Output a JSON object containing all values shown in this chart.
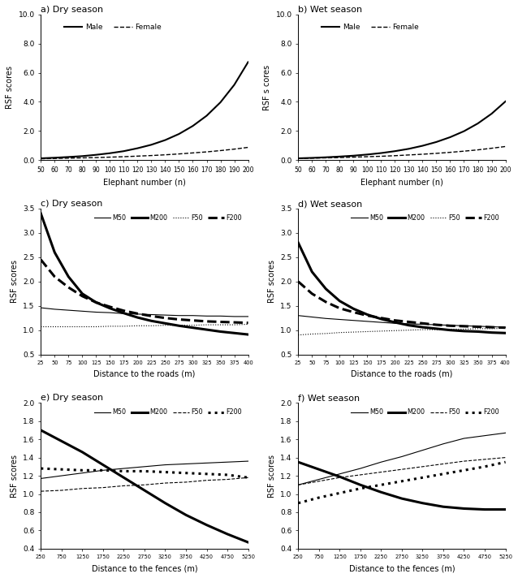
{
  "panels": [
    {
      "title": "a) Dry season",
      "type": "elephant_density",
      "season": "dry"
    },
    {
      "title": "b) Wet season",
      "type": "elephant_density",
      "season": "wet"
    },
    {
      "title": "c) Dry season",
      "type": "roads",
      "season": "dry"
    },
    {
      "title": "d) Wet season",
      "type": "roads",
      "season": "wet"
    },
    {
      "title": "e) Dry season",
      "type": "fences",
      "season": "dry"
    },
    {
      "title": "f) Wet season",
      "type": "fences",
      "season": "wet"
    }
  ],
  "elephant_density": {
    "x": [
      50,
      60,
      70,
      80,
      90,
      100,
      110,
      120,
      130,
      140,
      150,
      160,
      170,
      180,
      190,
      200
    ],
    "dry_male": [
      0.13,
      0.17,
      0.22,
      0.28,
      0.37,
      0.48,
      0.62,
      0.82,
      1.06,
      1.38,
      1.8,
      2.35,
      3.05,
      3.97,
      5.17,
      6.73
    ],
    "dry_female": [
      0.1,
      0.12,
      0.14,
      0.16,
      0.18,
      0.21,
      0.24,
      0.28,
      0.32,
      0.37,
      0.43,
      0.5,
      0.57,
      0.66,
      0.76,
      0.88
    ],
    "wet_male": [
      0.13,
      0.16,
      0.2,
      0.25,
      0.31,
      0.39,
      0.49,
      0.62,
      0.78,
      0.99,
      1.25,
      1.58,
      1.99,
      2.52,
      3.19,
      4.03
    ],
    "wet_female": [
      0.12,
      0.14,
      0.16,
      0.18,
      0.21,
      0.24,
      0.27,
      0.31,
      0.36,
      0.41,
      0.47,
      0.54,
      0.62,
      0.71,
      0.82,
      0.94
    ],
    "ylim": [
      0,
      10.0
    ],
    "yticks": [
      0.0,
      2.0,
      4.0,
      6.0,
      8.0,
      10.0
    ],
    "xlabel": "Elephant number (n)",
    "ylabel": "RSF scores"
  },
  "roads": {
    "x": [
      25,
      50,
      75,
      100,
      125,
      150,
      175,
      200,
      225,
      250,
      275,
      300,
      325,
      350,
      375,
      400
    ],
    "dry_M50": [
      1.46,
      1.43,
      1.41,
      1.39,
      1.37,
      1.36,
      1.34,
      1.33,
      1.32,
      1.31,
      1.3,
      1.3,
      1.29,
      1.29,
      1.28,
      1.28
    ],
    "dry_M200": [
      3.4,
      2.6,
      2.1,
      1.75,
      1.57,
      1.45,
      1.35,
      1.26,
      1.19,
      1.14,
      1.09,
      1.05,
      1.01,
      0.97,
      0.94,
      0.91
    ],
    "dry_F50": [
      1.07,
      1.07,
      1.07,
      1.07,
      1.07,
      1.08,
      1.08,
      1.09,
      1.09,
      1.1,
      1.1,
      1.1,
      1.11,
      1.11,
      1.11,
      1.12
    ],
    "dry_F200": [
      2.45,
      2.1,
      1.88,
      1.7,
      1.57,
      1.48,
      1.4,
      1.34,
      1.29,
      1.25,
      1.22,
      1.2,
      1.18,
      1.17,
      1.16,
      1.15
    ],
    "wet_M50": [
      1.3,
      1.27,
      1.24,
      1.22,
      1.2,
      1.18,
      1.16,
      1.14,
      1.13,
      1.12,
      1.11,
      1.1,
      1.09,
      1.08,
      1.07,
      1.06
    ],
    "wet_M200": [
      2.8,
      2.2,
      1.85,
      1.6,
      1.44,
      1.32,
      1.23,
      1.16,
      1.1,
      1.06,
      1.03,
      1.0,
      0.98,
      0.97,
      0.95,
      0.94
    ],
    "wet_F50": [
      0.9,
      0.92,
      0.93,
      0.95,
      0.96,
      0.97,
      0.98,
      0.99,
      1.0,
      1.01,
      1.01,
      1.02,
      1.02,
      1.03,
      1.03,
      1.04
    ],
    "wet_F200": [
      2.0,
      1.75,
      1.58,
      1.45,
      1.37,
      1.3,
      1.25,
      1.2,
      1.17,
      1.14,
      1.11,
      1.09,
      1.08,
      1.07,
      1.06,
      1.05
    ],
    "ylim": [
      0.5,
      3.5
    ],
    "yticks": [
      0.5,
      1.0,
      1.5,
      2.0,
      2.5,
      3.0,
      3.5
    ],
    "xlabel": "Distance to the roads (m)",
    "ylabel": "RSF scores"
  },
  "fences": {
    "x": [
      250,
      750,
      1250,
      1750,
      2250,
      2750,
      3250,
      3750,
      4250,
      4750,
      5250
    ],
    "dry_M50": [
      1.17,
      1.2,
      1.23,
      1.26,
      1.28,
      1.3,
      1.32,
      1.33,
      1.34,
      1.35,
      1.36
    ],
    "dry_M200": [
      1.7,
      1.58,
      1.46,
      1.32,
      1.18,
      1.04,
      0.9,
      0.77,
      0.66,
      0.56,
      0.47
    ],
    "dry_F50": [
      1.03,
      1.04,
      1.06,
      1.07,
      1.09,
      1.1,
      1.12,
      1.13,
      1.15,
      1.16,
      1.18
    ],
    "dry_F200": [
      1.28,
      1.27,
      1.26,
      1.26,
      1.25,
      1.25,
      1.24,
      1.23,
      1.22,
      1.21,
      1.18
    ],
    "wet_M50": [
      1.1,
      1.16,
      1.22,
      1.28,
      1.35,
      1.41,
      1.48,
      1.55,
      1.61,
      1.64,
      1.67
    ],
    "wet_M200": [
      1.35,
      1.27,
      1.19,
      1.1,
      1.02,
      0.95,
      0.9,
      0.86,
      0.84,
      0.83,
      0.83
    ],
    "wet_F50": [
      1.1,
      1.14,
      1.18,
      1.21,
      1.24,
      1.27,
      1.3,
      1.33,
      1.36,
      1.38,
      1.4
    ],
    "wet_F200": [
      0.9,
      0.96,
      1.01,
      1.06,
      1.1,
      1.14,
      1.18,
      1.22,
      1.26,
      1.3,
      1.35
    ],
    "ylim": [
      0.4,
      2.0
    ],
    "yticks": [
      0.4,
      0.6,
      0.8,
      1.0,
      1.2,
      1.4,
      1.6,
      1.8,
      2.0
    ],
    "xlabel": "Distance to the fences (m)",
    "ylabel": "RSF scores"
  },
  "background": "#ffffff"
}
